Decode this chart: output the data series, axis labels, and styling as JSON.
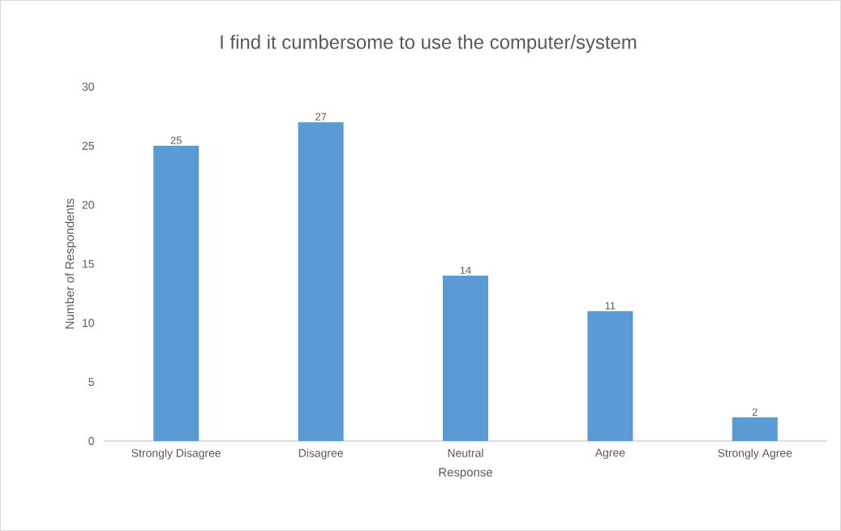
{
  "chart_data": {
    "type": "bar",
    "title": "I find it cumbersome to use the computer/system",
    "xlabel": "Response",
    "ylabel": "Number of Respondents",
    "categories": [
      "Strongly Disagree",
      "Disagree",
      "Neutral",
      "Agree",
      "Strongly Agree"
    ],
    "values": [
      25,
      27,
      14,
      11,
      2
    ],
    "color": "#5b9bd5",
    "ylim": [
      0,
      30
    ],
    "yticks": [
      0,
      5,
      10,
      15,
      20,
      25,
      30
    ],
    "grid": false,
    "data_labels": true
  }
}
